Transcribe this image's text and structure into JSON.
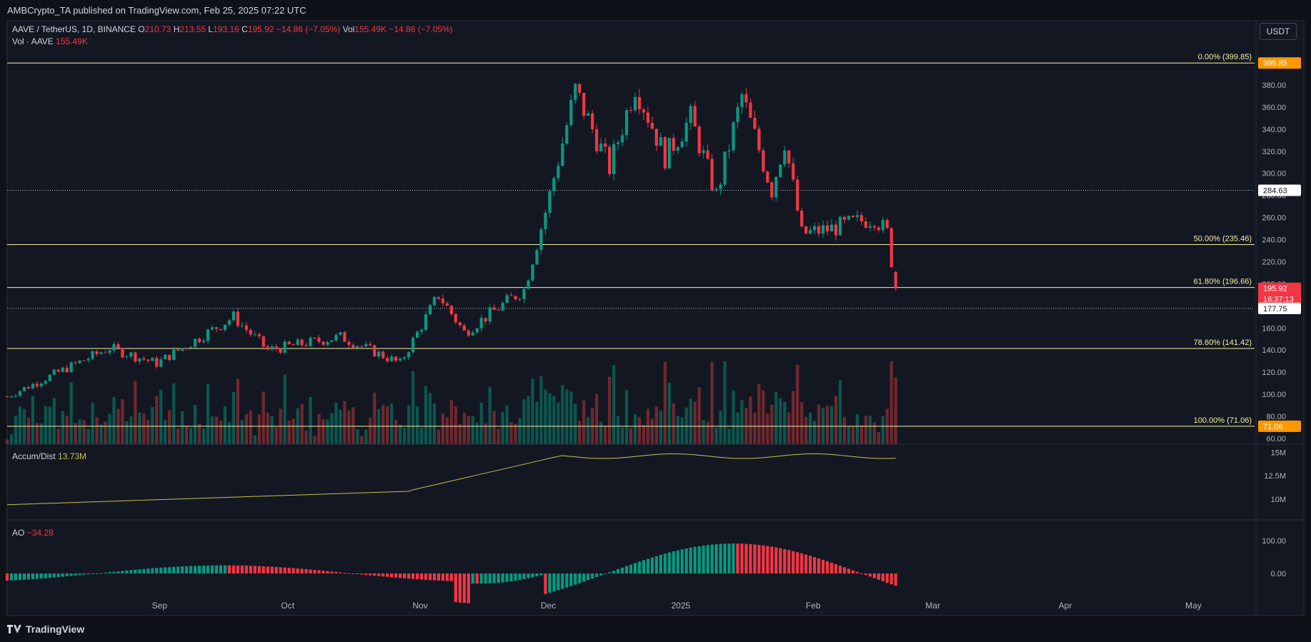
{
  "header": {
    "publisher": "AMBCrypto_TA published on TradingView.com, Feb 25, 2025 07:22 UTC"
  },
  "legend": {
    "symbol": "AAVE / TetherUS, 1D, BINANCE",
    "o_label": "O",
    "o": "210.73",
    "h_label": "H",
    "h": "213.55",
    "l_label": "L",
    "l": "193.16",
    "c_label": "C",
    "c": "195.92",
    "change": "−14.86 (−7.05%)",
    "vol_label": "Vol",
    "vol": "155.49K",
    "vol_change": "−14.86 (−7.05%)",
    "vol_series": "Vol · AAVE",
    "vol_series_value": "155.49K"
  },
  "currency_button": "USDT",
  "price_axis": {
    "ticks": [
      "380.00",
      "360.00",
      "340.00",
      "320.00",
      "300.00",
      "280.00",
      "260.00",
      "240.00",
      "220.00",
      "200.00",
      "180.00",
      "160.00",
      "140.00",
      "120.00",
      "100.00",
      "80.00",
      "60.00"
    ],
    "badges": [
      {
        "text": "399.85",
        "color": "#ff9800",
        "value": 399.85
      },
      {
        "text": "284.63",
        "color": "#ffffff",
        "value": 284.63
      },
      {
        "text": "195.92",
        "color": "#f23645",
        "value": 195.92
      },
      {
        "text": "16:37:13",
        "color": "#f23645",
        "value": 186.5
      },
      {
        "text": "177.75",
        "color": "#ffffff",
        "value": 177.75
      },
      {
        "text": "71.06",
        "color": "#ff9800",
        "value": 71.06
      }
    ]
  },
  "fib_levels": [
    {
      "label": "0.00% (399.85)",
      "value": 399.85
    },
    {
      "label": "50.00% (235.46)",
      "value": 235.46
    },
    {
      "label": "61.80% (196.66)",
      "value": 196.66
    },
    {
      "label": "78.60% (141.42)",
      "value": 141.42
    },
    {
      "label": "100.00% (71.06)",
      "value": 71.06
    }
  ],
  "dotted_levels": [
    284.63,
    177.75
  ],
  "time_axis": [
    "Sep",
    "Oct",
    "Nov",
    "Dec",
    "2025",
    "Feb",
    "Mar",
    "Apr",
    "May"
  ],
  "accum_dist": {
    "label": "Accum/Dist",
    "value": "13.73M",
    "ticks": [
      "15M",
      "12.5M",
      "10M"
    ]
  },
  "ao": {
    "label": "AO",
    "value": "−34.28",
    "ticks": [
      "100.00",
      "0.00"
    ]
  },
  "footer": {
    "brand": "TradingView"
  },
  "colors": {
    "background": "#131722",
    "up": "#089981",
    "down": "#f23645",
    "fib": "#f5f0a0",
    "ad_line": "#c9c04b"
  },
  "chart_data": {
    "type": "candlestick",
    "title": "AAVE / TetherUS, 1D, BINANCE",
    "y_range": [
      60,
      400
    ],
    "x_range": [
      "2024-08-01",
      "2025-05-20"
    ],
    "closes_anchor": [
      {
        "date": "2024-08-01",
        "close": 98
      },
      {
        "date": "2024-08-25",
        "close": 142
      },
      {
        "date": "2024-09-05",
        "close": 128
      },
      {
        "date": "2024-09-23",
        "close": 170
      },
      {
        "date": "2024-10-01",
        "close": 140
      },
      {
        "date": "2024-10-18",
        "close": 152
      },
      {
        "date": "2024-11-01",
        "close": 128
      },
      {
        "date": "2024-11-10",
        "close": 190
      },
      {
        "date": "2024-11-16",
        "close": 156
      },
      {
        "date": "2024-11-30",
        "close": 195
      },
      {
        "date": "2024-12-05",
        "close": 265
      },
      {
        "date": "2024-12-12",
        "close": 375
      },
      {
        "date": "2024-12-20",
        "close": 305
      },
      {
        "date": "2024-12-26",
        "close": 380
      },
      {
        "date": "2025-01-02",
        "close": 315
      },
      {
        "date": "2025-01-08",
        "close": 350
      },
      {
        "date": "2025-01-14",
        "close": 280
      },
      {
        "date": "2025-01-20",
        "close": 370
      },
      {
        "date": "2025-01-27",
        "close": 285
      },
      {
        "date": "2025-01-30",
        "close": 330
      },
      {
        "date": "2025-02-03",
        "close": 245
      },
      {
        "date": "2025-02-10",
        "close": 250
      },
      {
        "date": "2025-02-20",
        "close": 260
      },
      {
        "date": "2025-02-23",
        "close": 246
      },
      {
        "date": "2025-02-25",
        "close": 195.92
      }
    ],
    "ylabel": ""
  }
}
